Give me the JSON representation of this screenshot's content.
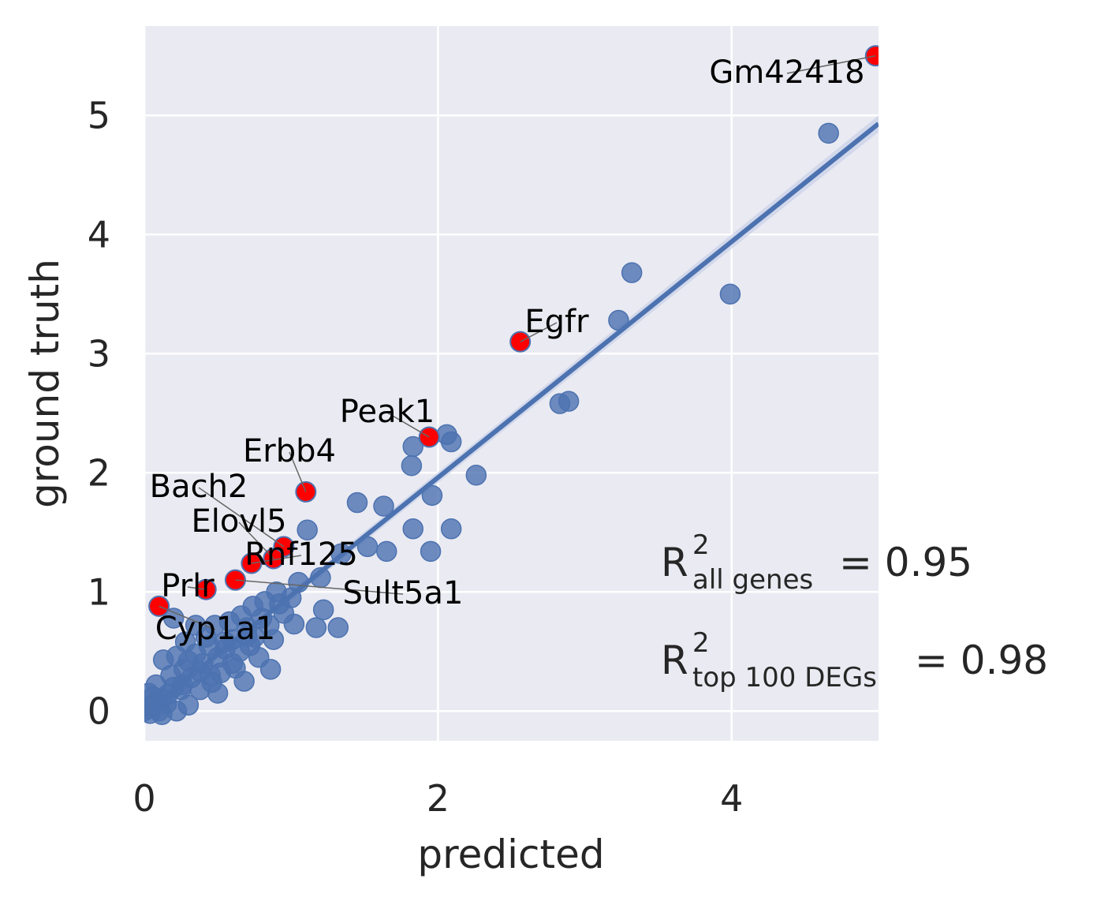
{
  "chart_data": {
    "type": "scatter",
    "xlabel": "predicted",
    "ylabel": "ground truth",
    "xlim": [
      0,
      5.0
    ],
    "ylim": [
      -0.25,
      5.75
    ],
    "xticks": [
      0,
      2,
      4
    ],
    "yticks": [
      0,
      1,
      2,
      3,
      4,
      5
    ],
    "grid": true,
    "regression_line": {
      "slope": 0.99,
      "intercept": -0.02
    },
    "colors": {
      "background": "#eaeaf2",
      "points": "#4c72b0",
      "highlight": "#ff0000",
      "line": "#4c72b0",
      "band": "#c7d0e8"
    },
    "points": [
      [
        4.66,
        4.85
      ],
      [
        3.32,
        3.68
      ],
      [
        3.99,
        3.5
      ],
      [
        3.23,
        3.28
      ],
      [
        2.89,
        2.6
      ],
      [
        2.83,
        2.58
      ],
      [
        2.06,
        2.32
      ],
      [
        2.09,
        2.26
      ],
      [
        1.83,
        2.22
      ],
      [
        1.82,
        2.06
      ],
      [
        2.26,
        1.98
      ],
      [
        1.96,
        1.81
      ],
      [
        1.45,
        1.75
      ],
      [
        1.63,
        1.72
      ],
      [
        1.83,
        1.53
      ],
      [
        2.09,
        1.53
      ],
      [
        1.11,
        1.52
      ],
      [
        1.52,
        1.38
      ],
      [
        1.65,
        1.34
      ],
      [
        1.95,
        1.34
      ],
      [
        1.34,
        1.32
      ],
      [
        1.2,
        1.12
      ],
      [
        1.05,
        1.08
      ],
      [
        0.9,
        1.0
      ],
      [
        1.22,
        0.85
      ],
      [
        1.32,
        0.7
      ],
      [
        1.17,
        0.7
      ],
      [
        1.02,
        0.73
      ],
      [
        0.92,
        0.9
      ],
      [
        0.86,
        0.35
      ],
      [
        0.7,
        0.63
      ],
      [
        0.68,
        0.25
      ],
      [
        0.55,
        0.58
      ],
      [
        0.6,
        0.4
      ],
      [
        0.5,
        0.15
      ],
      [
        0.44,
        0.55
      ],
      [
        0.38,
        0.33
      ],
      [
        0.3,
        0.05
      ],
      [
        0.2,
        0.78
      ],
      [
        0.13,
        0.43
      ],
      [
        0.28,
        0.58
      ],
      [
        0.35,
        0.72
      ],
      [
        0.26,
        0.22
      ],
      [
        0.18,
        0.3
      ],
      [
        0.12,
        0.1
      ],
      [
        0.08,
        0.22
      ],
      [
        0.05,
        0.05
      ],
      [
        0.03,
        0.15
      ],
      [
        0.1,
        0.0
      ],
      [
        0.22,
        0.0
      ],
      [
        0.15,
        0.06
      ],
      [
        0.4,
        0.4
      ],
      [
        0.45,
        0.3
      ],
      [
        0.5,
        0.45
      ],
      [
        0.55,
        0.52
      ],
      [
        0.6,
        0.6
      ],
      [
        0.65,
        0.5
      ],
      [
        0.7,
        0.7
      ],
      [
        0.75,
        0.62
      ],
      [
        0.8,
        0.78
      ],
      [
        0.85,
        0.72
      ],
      [
        0.95,
        0.82
      ],
      [
        1.0,
        0.95
      ],
      [
        0.32,
        0.28
      ],
      [
        0.25,
        0.18
      ],
      [
        0.2,
        0.2
      ],
      [
        0.16,
        0.14
      ],
      [
        0.08,
        0.08
      ],
      [
        0.02,
        0.02
      ],
      [
        0.0,
        0.0
      ],
      [
        0.04,
        -0.02
      ],
      [
        0.12,
        -0.03
      ],
      [
        0.06,
        0.12
      ],
      [
        0.35,
        0.48
      ],
      [
        0.42,
        0.62
      ],
      [
        0.58,
        0.75
      ],
      [
        0.48,
        0.72
      ],
      [
        0.66,
        0.8
      ],
      [
        0.72,
        0.55
      ],
      [
        0.78,
        0.45
      ],
      [
        0.88,
        0.6
      ],
      [
        0.3,
        0.42
      ],
      [
        0.27,
        0.35
      ],
      [
        0.22,
        0.46
      ],
      [
        0.38,
        0.18
      ],
      [
        0.46,
        0.24
      ],
      [
        0.52,
        0.32
      ],
      [
        0.62,
        0.36
      ],
      [
        0.74,
        0.88
      ],
      [
        0.82,
        0.92
      ]
    ],
    "highlighted": [
      {
        "name": "Gm42418",
        "x": 4.98,
        "y": 5.5
      },
      {
        "name": "Egfr",
        "x": 2.56,
        "y": 3.1
      },
      {
        "name": "Peak1",
        "x": 1.94,
        "y": 2.3
      },
      {
        "name": "Erbb4",
        "x": 1.1,
        "y": 1.84
      },
      {
        "name": "Bach2",
        "x": 0.95,
        "y": 1.38
      },
      {
        "name": "Elovl5",
        "x": 0.88,
        "y": 1.28
      },
      {
        "name": "Rnf125",
        "x": 0.73,
        "y": 1.24
      },
      {
        "name": "Sult5a1",
        "x": 0.62,
        "y": 1.1
      },
      {
        "name": "Prlr",
        "x": 0.42,
        "y": 1.02
      },
      {
        "name": "Cyp1a1",
        "x": 0.1,
        "y": 0.88
      }
    ],
    "annotations": {
      "r2_all_base": "R",
      "r2_all_sup": "2",
      "r2_all_sub": "all genes",
      "r2_all_value": "= 0.95",
      "r2_top_base": "R",
      "r2_top_sup": "2",
      "r2_top_sub": "top 100 DEGs",
      "r2_top_value": "= 0.98"
    }
  }
}
